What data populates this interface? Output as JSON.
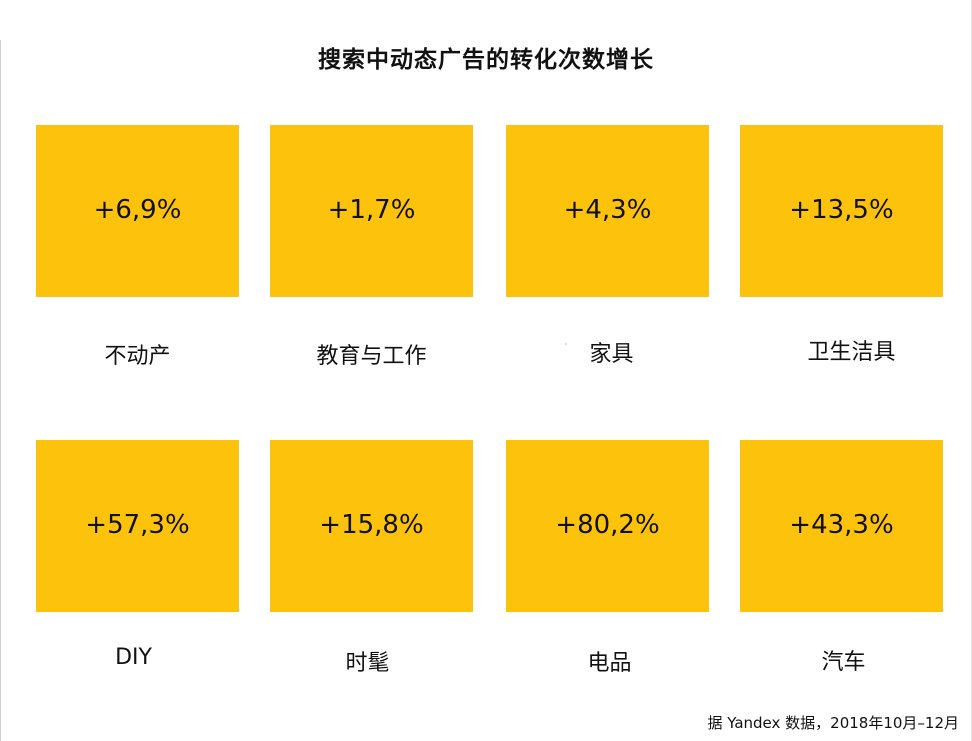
{
  "title": "搜索中动态广告的转化次数增长",
  "tiles": [
    {
      "value": "+6,9%",
      "label": "不动产"
    },
    {
      "value": "+1,7%",
      "label": "教育与工作"
    },
    {
      "value": "+4,3%",
      "label": "家具"
    },
    {
      "value": "+13,5%",
      "label": "卫生洁具"
    },
    {
      "value": "+57,3%",
      "label": "DIY"
    },
    {
      "value": "+15,8%",
      "label": "时髦"
    },
    {
      "value": "+80,2%",
      "label": "电品"
    },
    {
      "value": "+43,3%",
      "label": "汽车"
    }
  ],
  "footer": {
    "source": "据 Yandex 数据，2018年10月–12月"
  },
  "colors": {
    "tile_background": "#fdc20c",
    "text": "#111111",
    "page_background": "#ffffff"
  }
}
